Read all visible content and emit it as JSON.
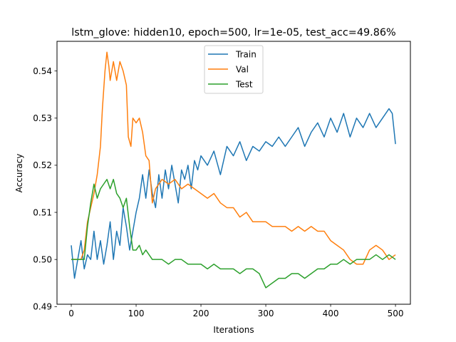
{
  "chart_data": {
    "type": "line",
    "title": "lstm_glove: hidden10, epoch=500, lr=1e-05, test_acc=49.86%",
    "xlabel": "Iterations",
    "ylabel": "Accuracy",
    "xlim": [
      -22,
      523
    ],
    "ylim": [
      0.4905,
      0.5463
    ],
    "xticks": [
      0,
      100,
      200,
      300,
      400,
      500
    ],
    "yticks": [
      0.49,
      0.5,
      0.51,
      0.52,
      0.53,
      0.54
    ],
    "ytick_labels": [
      "0.49",
      "0.50",
      "0.51",
      "0.52",
      "0.53",
      "0.54"
    ],
    "legend_position": "top-center",
    "grid": false,
    "series": [
      {
        "name": "Train",
        "color": "#1f77b4",
        "x": [
          0,
          5,
          10,
          15,
          20,
          25,
          30,
          35,
          40,
          45,
          50,
          55,
          60,
          65,
          70,
          75,
          80,
          85,
          90,
          95,
          100,
          105,
          110,
          115,
          120,
          125,
          130,
          135,
          140,
          145,
          150,
          155,
          160,
          165,
          170,
          175,
          180,
          185,
          190,
          195,
          200,
          210,
          220,
          230,
          240,
          250,
          260,
          270,
          280,
          290,
          300,
          310,
          320,
          330,
          340,
          350,
          360,
          370,
          380,
          390,
          400,
          410,
          420,
          430,
          440,
          450,
          460,
          470,
          480,
          490,
          495,
          500
        ],
        "values": [
          0.503,
          0.496,
          0.5,
          0.504,
          0.498,
          0.501,
          0.5,
          0.506,
          0.5,
          0.504,
          0.499,
          0.503,
          0.508,
          0.5,
          0.506,
          0.503,
          0.511,
          0.507,
          0.502,
          0.506,
          0.51,
          0.513,
          0.518,
          0.513,
          0.519,
          0.514,
          0.511,
          0.518,
          0.513,
          0.519,
          0.515,
          0.52,
          0.516,
          0.512,
          0.519,
          0.517,
          0.52,
          0.515,
          0.521,
          0.519,
          0.522,
          0.52,
          0.523,
          0.518,
          0.524,
          0.522,
          0.525,
          0.521,
          0.524,
          0.523,
          0.525,
          0.524,
          0.526,
          0.524,
          0.526,
          0.528,
          0.524,
          0.527,
          0.529,
          0.526,
          0.53,
          0.527,
          0.531,
          0.526,
          0.53,
          0.528,
          0.531,
          0.528,
          0.53,
          0.532,
          0.531,
          0.5245
        ]
      },
      {
        "name": "Val",
        "color": "#ff7f0e",
        "x": [
          0,
          5,
          10,
          15,
          20,
          25,
          30,
          35,
          40,
          45,
          48,
          52,
          55,
          58,
          60,
          65,
          70,
          75,
          80,
          85,
          88,
          92,
          95,
          100,
          105,
          110,
          115,
          120,
          125,
          130,
          140,
          150,
          160,
          170,
          180,
          190,
          200,
          210,
          220,
          230,
          240,
          250,
          260,
          270,
          280,
          290,
          300,
          310,
          320,
          330,
          340,
          350,
          360,
          370,
          380,
          390,
          400,
          410,
          420,
          430,
          440,
          450,
          460,
          470,
          480,
          490,
          500
        ],
        "values": [
          0.5,
          0.5,
          0.5,
          0.5,
          0.502,
          0.508,
          0.511,
          0.514,
          0.518,
          0.524,
          0.532,
          0.54,
          0.544,
          0.541,
          0.538,
          0.542,
          0.538,
          0.542,
          0.54,
          0.537,
          0.526,
          0.524,
          0.53,
          0.529,
          0.53,
          0.527,
          0.522,
          0.521,
          0.512,
          0.515,
          0.517,
          0.516,
          0.517,
          0.515,
          0.516,
          0.515,
          0.514,
          0.513,
          0.514,
          0.512,
          0.511,
          0.511,
          0.509,
          0.51,
          0.508,
          0.508,
          0.508,
          0.507,
          0.507,
          0.507,
          0.506,
          0.507,
          0.506,
          0.507,
          0.506,
          0.506,
          0.504,
          0.503,
          0.502,
          0.5,
          0.499,
          0.499,
          0.502,
          0.503,
          0.502,
          0.5,
          0.501
        ]
      },
      {
        "name": "Test",
        "color": "#2ca02c",
        "x": [
          0,
          5,
          10,
          15,
          20,
          25,
          30,
          35,
          40,
          45,
          50,
          55,
          60,
          65,
          70,
          75,
          80,
          85,
          90,
          95,
          100,
          105,
          110,
          115,
          120,
          125,
          130,
          140,
          150,
          160,
          170,
          180,
          190,
          200,
          210,
          220,
          230,
          240,
          250,
          260,
          270,
          280,
          290,
          300,
          310,
          320,
          330,
          340,
          350,
          360,
          370,
          380,
          390,
          400,
          410,
          420,
          430,
          440,
          450,
          460,
          470,
          480,
          490,
          500
        ],
        "values": [
          0.5,
          0.5,
          0.5,
          0.5,
          0.5,
          0.507,
          0.512,
          0.516,
          0.513,
          0.515,
          0.516,
          0.517,
          0.515,
          0.517,
          0.514,
          0.513,
          0.511,
          0.513,
          0.507,
          0.502,
          0.502,
          0.503,
          0.501,
          0.502,
          0.501,
          0.5,
          0.5,
          0.5,
          0.499,
          0.5,
          0.5,
          0.499,
          0.499,
          0.499,
          0.498,
          0.499,
          0.498,
          0.498,
          0.498,
          0.497,
          0.498,
          0.498,
          0.497,
          0.494,
          0.495,
          0.496,
          0.496,
          0.497,
          0.497,
          0.496,
          0.497,
          0.498,
          0.498,
          0.499,
          0.499,
          0.5,
          0.499,
          0.5,
          0.5,
          0.5,
          0.501,
          0.5,
          0.501,
          0.5
        ]
      }
    ]
  }
}
